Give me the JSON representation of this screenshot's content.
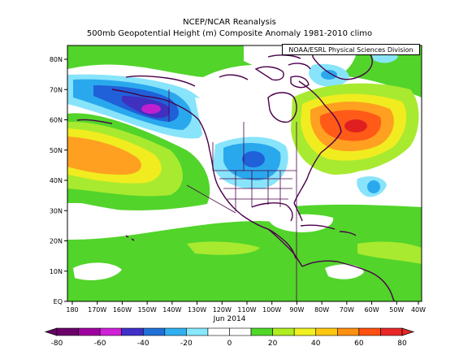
{
  "title": "NCEP/NCAR Reanalysis",
  "subtitle": "500mb Geopotential Height (m) Composite Anomaly 1981-2010 climo",
  "credit": "NOAA/ESRL Physical Sciences Division",
  "period": "Jun 2014",
  "lat_labels": [
    "80N",
    "70N",
    "60N",
    "50N",
    "40N",
    "30N",
    "20N",
    "10N",
    "EQ"
  ],
  "lon_labels": [
    "180",
    "170W",
    "160W",
    "150W",
    "140W",
    "130W",
    "120W",
    "110W",
    "100W",
    "90W",
    "80W",
    "70W",
    "60W",
    "50W",
    "40W"
  ],
  "colorbar": {
    "labels": [
      "-80",
      "-60",
      "-40",
      "-20",
      "0",
      "20",
      "40",
      "60",
      "80"
    ],
    "colors": [
      "#6a006a",
      "#a000a0",
      "#d020d8",
      "#4030c8",
      "#2070d8",
      "#30b0f0",
      "#88e8ff",
      "#ffffff",
      "#ffffff",
      "#50d828",
      "#b0ec20",
      "#f0f020",
      "#ffc810",
      "#ff9010",
      "#ff5010",
      "#e82828"
    ]
  },
  "palette": {
    "green": "#52d42a",
    "lightgreen": "#a8ea30",
    "yellow": "#f0ec20",
    "orange": "#ffa020",
    "red": "#ff5a18",
    "deepred": "#e02020",
    "cyan": "#88e4fa",
    "skyblue": "#2aa8ee",
    "blue": "#2060d8",
    "indigo": "#4030c0",
    "magenta": "#c020d0",
    "coast": "#4a004a"
  }
}
